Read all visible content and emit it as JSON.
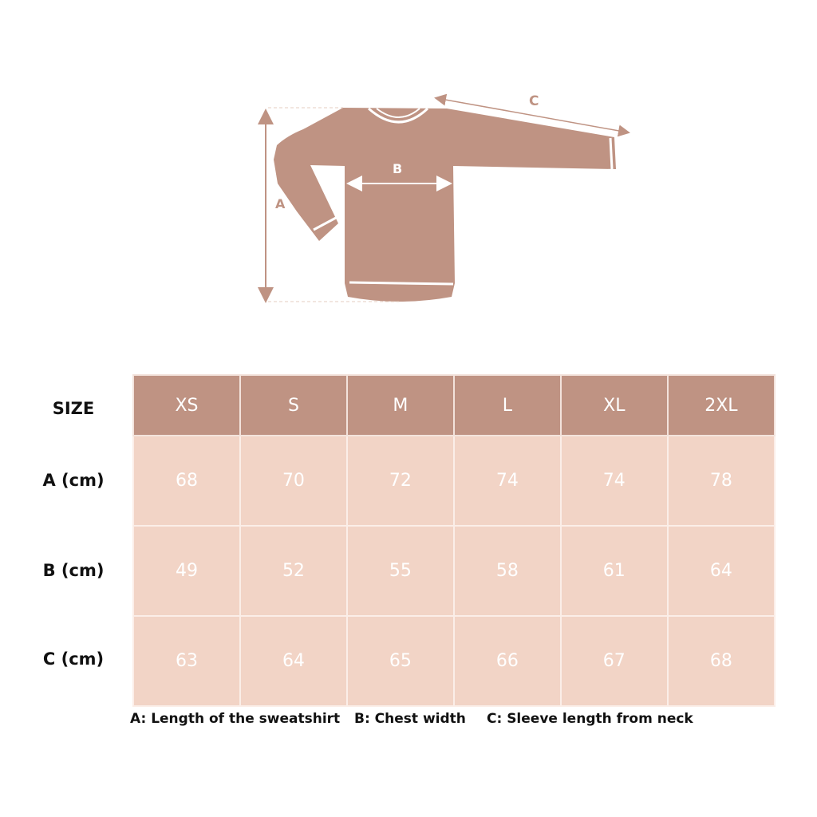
{
  "diagram": {
    "labels": {
      "a": "A",
      "b": "B",
      "c": "C"
    },
    "color": "#bf9383"
  },
  "table": {
    "size_label": "SIZE",
    "sizes": [
      "XS",
      "S",
      "M",
      "L",
      "XL",
      "2XL"
    ],
    "rows": [
      {
        "label": "A (cm)",
        "values": [
          "68",
          "70",
          "72",
          "74",
          "74",
          "78"
        ]
      },
      {
        "label": "B (cm)",
        "values": [
          "49",
          "52",
          "55",
          "58",
          "61",
          "64"
        ]
      },
      {
        "label": "C (cm)",
        "values": [
          "63",
          "64",
          "65",
          "66",
          "67",
          "68"
        ]
      }
    ],
    "header_color": "#bf9383",
    "cell_color": "#f2d4c6"
  },
  "legend": {
    "a": "A: Length of the sweatshirt",
    "b": "B: Chest width",
    "c": "C: Sleeve length from neck"
  }
}
